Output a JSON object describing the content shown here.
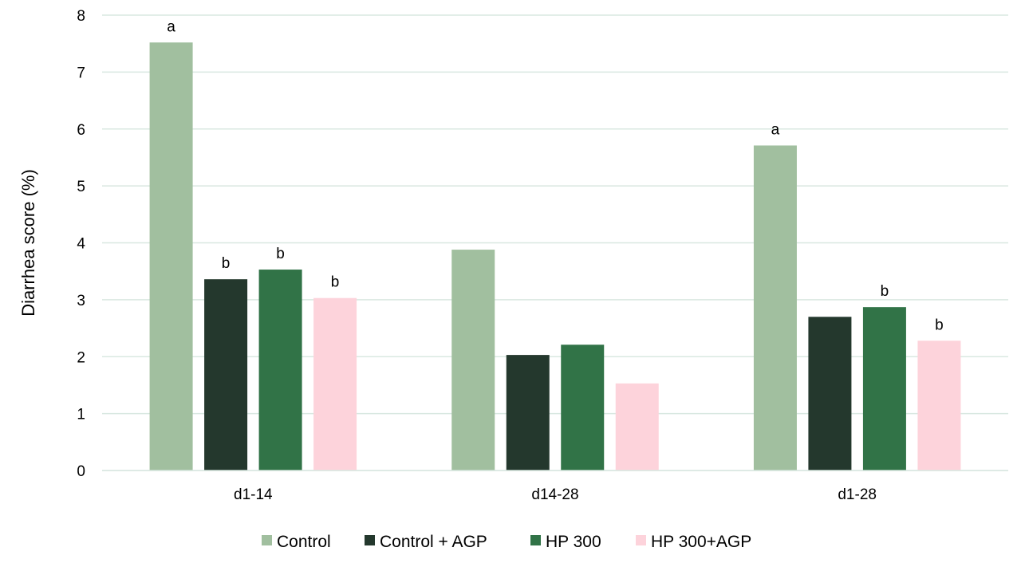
{
  "chart_data": {
    "type": "bar",
    "title": "",
    "xlabel": "",
    "ylabel": "Diarrhea score (%)",
    "ylim": [
      0,
      8
    ],
    "yticks": [
      0,
      1,
      2,
      3,
      4,
      5,
      6,
      7,
      8
    ],
    "grid": true,
    "legend_position": "bottom",
    "categories": [
      "d1-14",
      "d14-28",
      "d1-28"
    ],
    "series": [
      {
        "name": "Control",
        "color": "#a1bf9f",
        "values": [
          7.52,
          3.88,
          5.71
        ],
        "labels": [
          "a",
          "",
          "a"
        ]
      },
      {
        "name": "Control + AGP",
        "color": "#24382d",
        "values": [
          3.36,
          2.03,
          2.7
        ],
        "labels": [
          "b",
          "",
          ""
        ]
      },
      {
        "name": "HP 300",
        "color": "#317347",
        "values": [
          3.53,
          2.21,
          2.87
        ],
        "labels": [
          "b",
          "",
          "b"
        ]
      },
      {
        "name": "HP 300+AGP",
        "color": "#fdd3db",
        "values": [
          3.03,
          1.53,
          2.28
        ],
        "labels": [
          "b",
          "",
          "b"
        ]
      }
    ]
  }
}
